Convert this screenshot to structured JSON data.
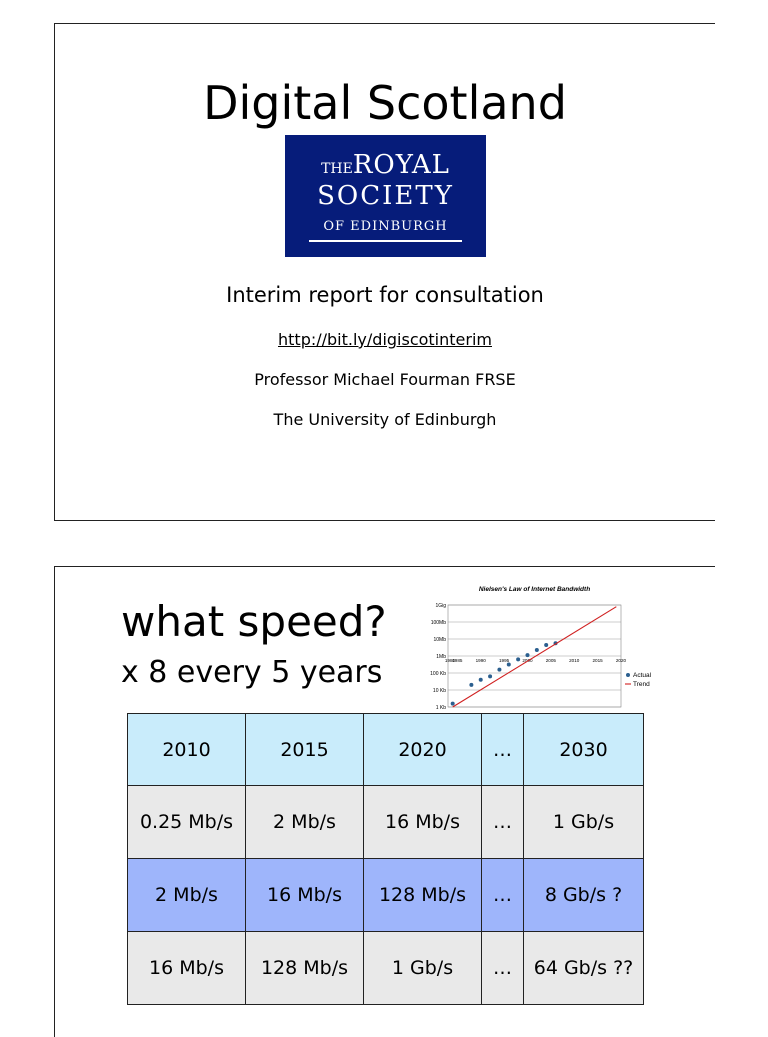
{
  "slide1": {
    "title": "Digital Scotland",
    "logo": {
      "the": "THE",
      "royal": "ROYAL",
      "society": "SOCIETY",
      "edinburgh": "OF EDINBURGH",
      "bg_color": "#061c7a"
    },
    "subtitle": "Interim report for consultation",
    "link": "http://bit.ly/digiscotinterim",
    "author": "Professor Michael Fourman FRSE",
    "institution": "The University of Edinburgh"
  },
  "slide2": {
    "title": "what speed?",
    "subtitle": "x 8 every 5 years",
    "table": {
      "header": [
        "2010",
        "2015",
        "2020",
        "…",
        "2030"
      ],
      "rows": [
        [
          "0.25 Mb/s",
          "2 Mb/s",
          "16 Mb/s",
          "…",
          "1 Gb/s"
        ],
        [
          "2 Mb/s",
          "16 Mb/s",
          "128 Mb/s",
          "…",
          "8 Gb/s ?"
        ],
        [
          "16 Mb/s",
          "128 Mb/s",
          "1 Gb/s",
          "…",
          "64 Gb/s ??"
        ]
      ],
      "colors": {
        "header": "#c9ecfb",
        "grey": "#e9e9e9",
        "blue": "#9eb5fb"
      }
    }
  },
  "chart_data": {
    "type": "scatter",
    "title": "Nielsen's Law of Internet Bandwidth",
    "x_ticks": [
      "1980",
      "1985",
      "1990",
      "1995",
      "2000",
      "2005",
      "2010",
      "2015",
      "2020"
    ],
    "y_ticks": [
      "1 Kb",
      "10 Kb",
      "100 Kb",
      "1Mb",
      "10Mb",
      "100Mb",
      "1Gig"
    ],
    "xlim": [
      1983,
      2020
    ],
    "ylim_log10": [
      3,
      9
    ],
    "series": [
      {
        "name": "Actual",
        "type": "scatter",
        "color": "#2b5f8f",
        "points": [
          [
            1984,
            3.2
          ],
          [
            1988,
            4.3
          ],
          [
            1990,
            4.6
          ],
          [
            1992,
            4.8
          ],
          [
            1994,
            5.2
          ],
          [
            1996,
            5.5
          ],
          [
            1998,
            5.8
          ],
          [
            2000,
            6.05
          ],
          [
            2002,
            6.35
          ],
          [
            2004,
            6.65
          ],
          [
            2006,
            6.75
          ]
        ]
      },
      {
        "name": "Trend",
        "type": "line",
        "color": "#d02020",
        "points": [
          [
            1984,
            3.0
          ],
          [
            2019,
            8.9
          ]
        ]
      }
    ],
    "legend": "right",
    "grid": true
  }
}
